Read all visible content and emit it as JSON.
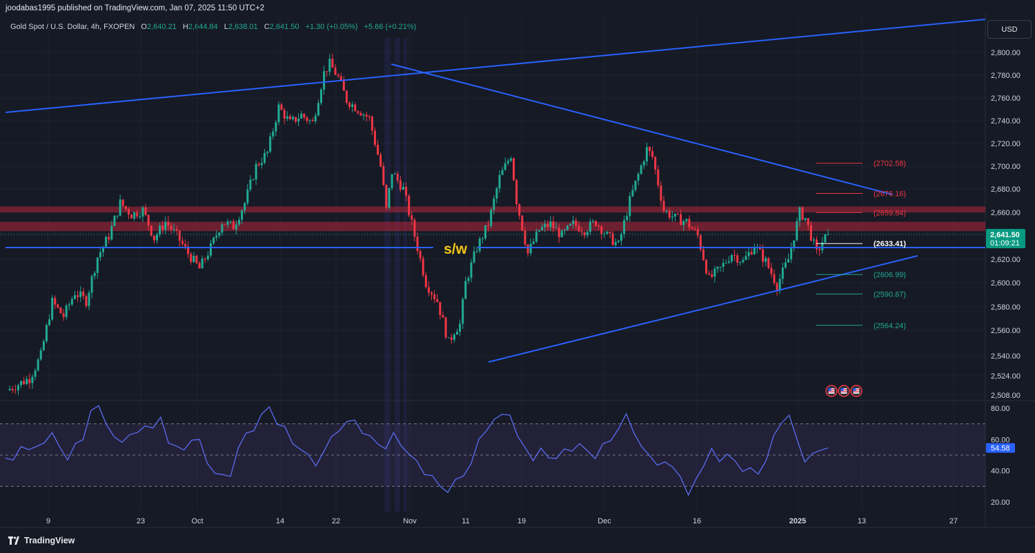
{
  "header": {
    "published_line": "joodabas1995 published on TradingView.com, Jan 07, 2025 11:50 UTC+2",
    "symbol": "Gold Spot / U.S. Dollar, 4h, FXOPEN",
    "o_label": "O",
    "o_value": "2,640.21",
    "h_label": "H",
    "h_value": "2,644.84",
    "l_label": "L",
    "l_value": "2,638.01",
    "c_label": "C",
    "c_value": "2,641.50",
    "change": "+1.30 (+0.05%)",
    "change2": "+5.66 (+0.21%)"
  },
  "currency_button": "USD",
  "brand": "TradingView",
  "colors": {
    "up": "#22ab94",
    "down": "#f23645",
    "trendline": "#2962ff",
    "rsi": "#5b6cf0",
    "zone": "#9b2335"
  },
  "chart_data": [
    {
      "type": "candlestick",
      "title": "Gold Spot / U.S. Dollar, 4h, FXOPEN",
      "price_axis_ticks": [
        "2,800.00",
        "2,780.00",
        "2,760.00",
        "2,740.00",
        "2,720.00",
        "2,700.00",
        "2,680.00",
        "2,660.00",
        "2,640.00",
        "2,620.00",
        "2,600.00",
        "2,580.00",
        "2,560.00",
        "2,540.00",
        "2,524.00",
        "2,508.00"
      ],
      "time_axis_ticks": [
        "9",
        "23",
        "Oct",
        "14",
        "22",
        "Nov",
        "11",
        "19",
        "Dec",
        "16",
        "2025",
        "13",
        "27"
      ],
      "ylim": [
        2508,
        2800
      ],
      "last_price": "2,641.50",
      "countdown": "01:09:21",
      "close_path": [
        [
          0,
          2512
        ],
        [
          8,
          2522
        ],
        [
          12,
          2540
        ],
        [
          16,
          2584
        ],
        [
          20,
          2572
        ],
        [
          24,
          2592
        ],
        [
          28,
          2585
        ],
        [
          32,
          2622
        ],
        [
          36,
          2640
        ],
        [
          40,
          2668
        ],
        [
          44,
          2658
        ],
        [
          48,
          2662
        ],
        [
          52,
          2638
        ],
        [
          56,
          2652
        ],
        [
          60,
          2640
        ],
        [
          64,
          2625
        ],
        [
          68,
          2612
        ],
        [
          72,
          2630
        ],
        [
          76,
          2652
        ],
        [
          80,
          2648
        ],
        [
          84,
          2668
        ],
        [
          88,
          2700
        ],
        [
          92,
          2712
        ],
        [
          96,
          2752
        ],
        [
          100,
          2738
        ],
        [
          104,
          2745
        ],
        [
          108,
          2738
        ],
        [
          112,
          2782
        ],
        [
          114,
          2790
        ],
        [
          117,
          2778
        ],
        [
          120,
          2758
        ],
        [
          124,
          2750
        ],
        [
          128,
          2742
        ],
        [
          132,
          2700
        ],
        [
          134,
          2662
        ],
        [
          136,
          2695
        ],
        [
          140,
          2680
        ],
        [
          142,
          2660
        ],
        [
          144,
          2640
        ],
        [
          148,
          2600
        ],
        [
          152,
          2585
        ],
        [
          156,
          2550
        ],
        [
          158,
          2560
        ],
        [
          160,
          2565
        ],
        [
          162,
          2600
        ],
        [
          166,
          2630
        ],
        [
          170,
          2650
        ],
        [
          174,
          2690
        ],
        [
          178,
          2710
        ],
        [
          180,
          2670
        ],
        [
          184,
          2625
        ],
        [
          188,
          2645
        ],
        [
          192,
          2650
        ],
        [
          196,
          2640
        ],
        [
          200,
          2650
        ],
        [
          204,
          2645
        ],
        [
          208,
          2652
        ],
        [
          212,
          2640
        ],
        [
          216,
          2632
        ],
        [
          220,
          2670
        ],
        [
          224,
          2700
        ],
        [
          226,
          2715
        ],
        [
          228,
          2708
        ],
        [
          230,
          2685
        ],
        [
          232,
          2662
        ],
        [
          236,
          2655
        ],
        [
          240,
          2652
        ],
        [
          244,
          2640
        ],
        [
          248,
          2603
        ],
        [
          252,
          2612
        ],
        [
          256,
          2625
        ],
        [
          260,
          2618
        ],
        [
          264,
          2632
        ],
        [
          268,
          2618
        ],
        [
          272,
          2598
        ],
        [
          276,
          2620
        ],
        [
          280,
          2660
        ],
        [
          282,
          2655
        ],
        [
          284,
          2640
        ],
        [
          286,
          2625
        ],
        [
          288,
          2635
        ],
        [
          290,
          2641.5
        ]
      ],
      "horizontal_levels": [
        {
          "label": "(2702.58)",
          "value": 2702.58,
          "color": "#f23645"
        },
        {
          "label": "(2676.16)",
          "value": 2676.16,
          "color": "#f23645"
        },
        {
          "label": "(2659.84)",
          "value": 2659.84,
          "color": "#f23645"
        },
        {
          "label": "(2633.41)",
          "value": 2633.41,
          "color": "#ffffff"
        },
        {
          "label": "(2606.99)",
          "value": 2606.99,
          "color": "#22ab94"
        },
        {
          "label": "(2590.67)",
          "value": 2590.67,
          "color": "#22ab94"
        },
        {
          "label": "(2564.24)",
          "value": 2564.24,
          "color": "#22ab94"
        }
      ],
      "resistance_zones": [
        [
          2660,
          2665
        ],
        [
          2644,
          2652
        ]
      ],
      "support_line": {
        "value": 2630,
        "label": "s/w"
      },
      "event_icons": 3
    },
    {
      "type": "line",
      "indicator": "RSI",
      "ylim": [
        15,
        85
      ],
      "ticks": [
        "80.00",
        "60.00",
        "40.00",
        "20.00"
      ],
      "bands": [
        30,
        50,
        70
      ],
      "last_value": "54.58",
      "values": [
        48,
        45,
        58,
        52,
        55,
        60,
        62,
        56,
        48,
        55,
        62,
        78,
        80,
        72,
        60,
        58,
        65,
        62,
        70,
        68,
        72,
        60,
        55,
        52,
        62,
        58,
        45,
        40,
        35,
        38,
        55,
        62,
        68,
        75,
        80,
        72,
        66,
        58,
        55,
        48,
        45,
        52,
        60,
        68,
        70,
        72,
        66,
        60,
        58,
        55,
        62,
        58,
        50,
        45,
        40,
        35,
        30,
        28,
        32,
        38,
        45,
        58,
        68,
        72,
        75,
        78,
        60,
        55,
        48,
        52,
        50,
        48,
        52,
        55,
        56,
        52,
        50,
        55,
        60,
        68,
        74,
        66,
        55,
        48,
        46,
        44,
        42,
        38,
        22,
        36,
        44,
        52,
        48,
        50,
        45,
        42,
        40,
        38,
        48,
        60,
        72,
        76,
        58,
        48,
        50,
        52,
        54.58
      ]
    }
  ]
}
